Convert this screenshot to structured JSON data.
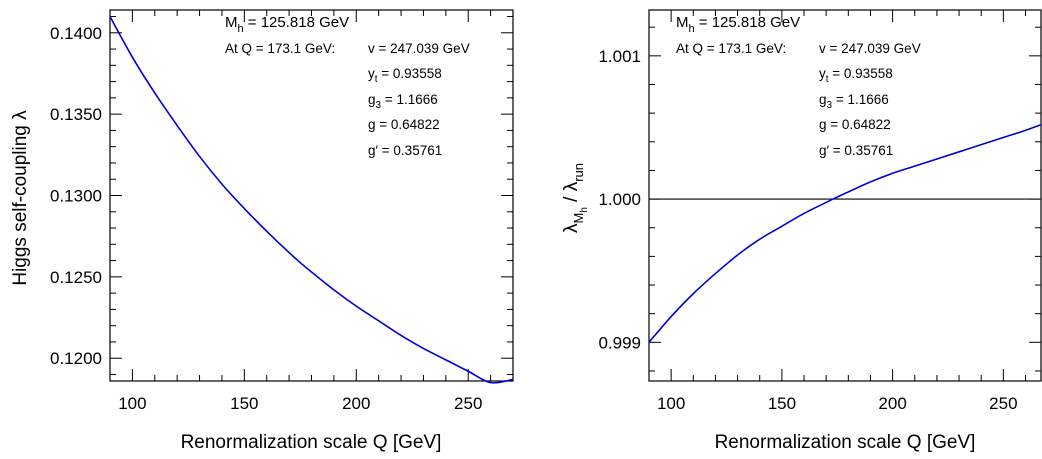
{
  "chart_data": [
    {
      "type": "line",
      "xlabel": "Renormalization scale Q  [GeV]",
      "ylabel": "Higgs self-coupling  λ",
      "xlim": [
        90,
        270
      ],
      "ylim": [
        0.1186,
        0.1414
      ],
      "xticks": [
        100,
        150,
        200,
        250
      ],
      "xtick_labels": [
        "100",
        "150",
        "200",
        "250"
      ],
      "yticks": [
        0.12,
        0.125,
        0.13,
        0.135,
        0.14
      ],
      "ytick_labels": [
        "0.1200",
        "0.1250",
        "0.1300",
        "0.1350",
        "0.1400"
      ],
      "series": [
        {
          "color": "#0000dd",
          "x": [
            90,
            100,
            110,
            120,
            130,
            140,
            150,
            160,
            173.1,
            180,
            190,
            200,
            210,
            220,
            230,
            240,
            250,
            260,
            270
          ],
          "y": [
            0.141,
            0.1385,
            0.1363,
            0.1343,
            0.1324,
            0.1307,
            0.1292,
            0.1278,
            0.1261,
            0.1253,
            0.1242,
            0.1232,
            0.1223,
            0.1214,
            0.1206,
            0.1199,
            0.1192,
            0.1185,
            0.1187
          ]
        }
      ],
      "annotations": {
        "mh_line": "M",
        "mh_sub": "h",
        "mh_value": " = 125.818 GeV",
        "at_q": "At Q = 173.1 GeV:",
        "v": "v = 247.039 GeV",
        "yt_main": "y",
        "yt_sub": "t",
        "yt_value": " = 0.93558",
        "g3_main": "g",
        "g3_sub": "3",
        "g3_value": " = 1.1666",
        "g": "g = 0.64822",
        "gp": "g′ = 0.35761"
      }
    },
    {
      "type": "line",
      "xlabel": "Renormalization scale Q  [GeV]",
      "ylabel_parts": [
        "λ",
        "M",
        "h",
        " / λ",
        "run"
      ],
      "xlim": [
        90,
        267
      ],
      "ylim": [
        0.99873,
        1.00132
      ],
      "xticks": [
        100,
        150,
        200,
        250
      ],
      "xtick_labels": [
        "100",
        "150",
        "200",
        "250"
      ],
      "yticks": [
        0.999,
        1.0,
        1.001
      ],
      "ytick_labels": [
        "0.999",
        "1.000",
        "1.001"
      ],
      "reference_line": 1.0,
      "series": [
        {
          "color": "#0000dd",
          "x": [
            90,
            100,
            110,
            120,
            130,
            140,
            150,
            160,
            173.1,
            180,
            190,
            200,
            210,
            220,
            230,
            240,
            250,
            260,
            267
          ],
          "y": [
            0.999,
            0.99918,
            0.99934,
            0.99948,
            0.99961,
            0.99972,
            0.99981,
            0.9999,
            1.0,
            1.00005,
            1.00012,
            1.00018,
            1.00023,
            1.00028,
            1.00033,
            1.00038,
            1.00043,
            1.00048,
            1.00052
          ]
        }
      ],
      "annotations": {
        "mh_line": "M",
        "mh_sub": "h",
        "mh_value": " = 125.818 GeV",
        "at_q": "At Q = 173.1 GeV:",
        "v": "v = 247.039 GeV",
        "yt_main": "y",
        "yt_sub": "t",
        "yt_value": " = 0.93558",
        "g3_main": "g",
        "g3_sub": "3",
        "g3_value": " = 1.1666",
        "g": "g = 0.64822",
        "gp": "g′ = 0.35761"
      }
    }
  ]
}
